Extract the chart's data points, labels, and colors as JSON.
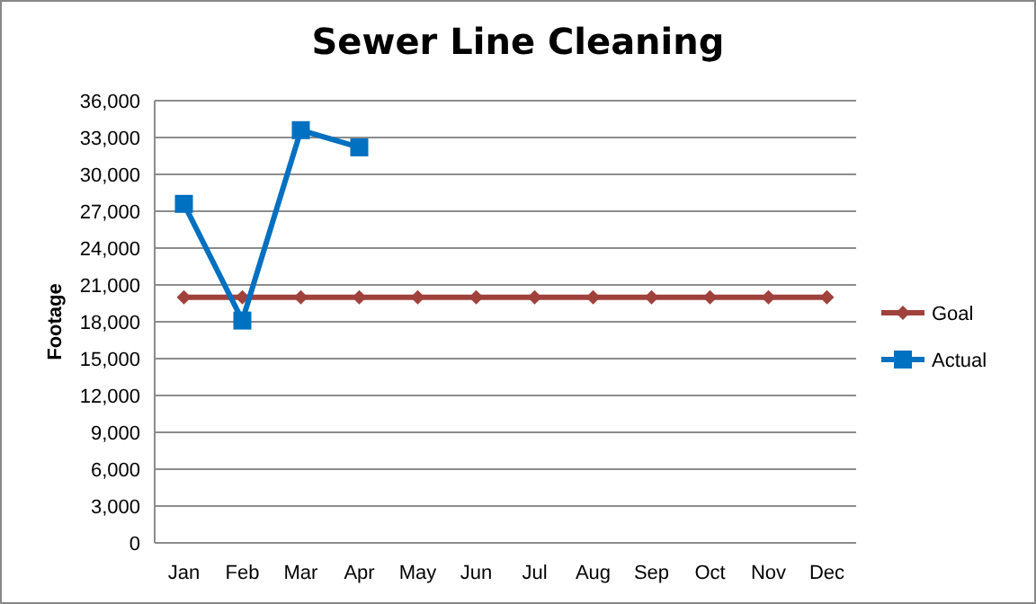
{
  "chart_data": {
    "type": "line",
    "title": "Sewer Line Cleaning",
    "ylabel": "Footage",
    "categories": [
      "Jan",
      "Feb",
      "Mar",
      "Apr",
      "May",
      "Jun",
      "Jul",
      "Aug",
      "Sep",
      "Oct",
      "Nov",
      "Dec"
    ],
    "series": [
      {
        "name": "Goal",
        "color": "#a0413c",
        "marker": "diamond",
        "values": [
          20000,
          20000,
          20000,
          20000,
          20000,
          20000,
          20000,
          20000,
          20000,
          20000,
          20000,
          20000
        ]
      },
      {
        "name": "Actual",
        "color": "#0070c0",
        "marker": "square",
        "values": [
          27600,
          18100,
          33600,
          32200,
          null,
          null,
          null,
          null,
          null,
          null,
          null,
          null
        ]
      }
    ],
    "ylim": [
      0,
      36000
    ],
    "yticks": [
      0,
      {
        "value": 3000,
        "label": "3,000"
      },
      {
        "value": 6000,
        "label": "6,000"
      },
      {
        "value": 9000,
        "label": "9,000"
      },
      {
        "value": 12000,
        "label": "12,000"
      },
      {
        "value": 15000,
        "label": "15,000"
      },
      {
        "value": 18000,
        "label": "18,000"
      },
      {
        "value": 21000,
        "label": "21,000"
      },
      {
        "value": 24000,
        "label": "24,000"
      },
      {
        "value": 27000,
        "label": "27,000"
      },
      {
        "value": 30000,
        "label": "30,000"
      },
      {
        "value": 33000,
        "label": "33,000"
      },
      {
        "value": 36000,
        "label": "36,000"
      }
    ],
    "grid": "y",
    "legend": "right",
    "line_style": "solid"
  }
}
